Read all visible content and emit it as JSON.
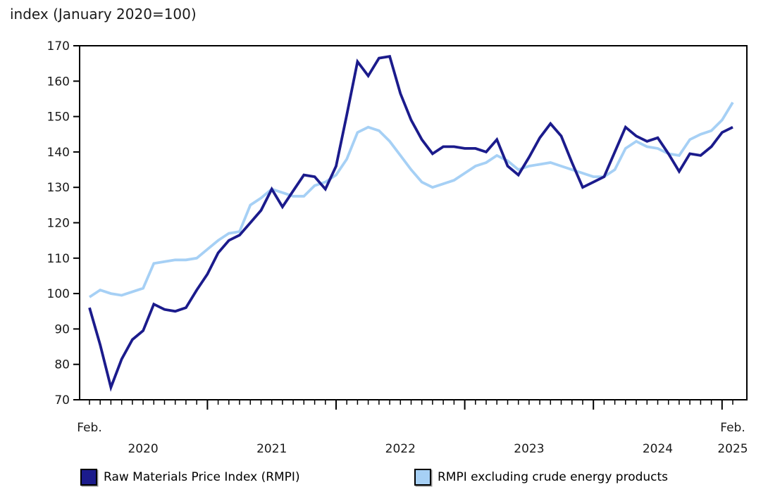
{
  "title": "index (January 2020=100)",
  "chart_data": {
    "type": "line",
    "title": "index (January 2020=100)",
    "ylim": [
      70,
      170
    ],
    "y_ticks": [
      70,
      80,
      90,
      100,
      110,
      120,
      130,
      140,
      150,
      160,
      170
    ],
    "grid": false,
    "legend_position": "bottom",
    "x": [
      "2020-02",
      "2020-03",
      "2020-04",
      "2020-05",
      "2020-06",
      "2020-07",
      "2020-08",
      "2020-09",
      "2020-10",
      "2020-11",
      "2020-12",
      "2021-01",
      "2021-02",
      "2021-03",
      "2021-04",
      "2021-05",
      "2021-06",
      "2021-07",
      "2021-08",
      "2021-09",
      "2021-10",
      "2021-11",
      "2021-12",
      "2022-01",
      "2022-02",
      "2022-03",
      "2022-04",
      "2022-05",
      "2022-06",
      "2022-07",
      "2022-08",
      "2022-09",
      "2022-10",
      "2022-11",
      "2022-12",
      "2023-01",
      "2023-02",
      "2023-03",
      "2023-04",
      "2023-05",
      "2023-06",
      "2023-07",
      "2023-08",
      "2023-09",
      "2023-10",
      "2023-11",
      "2023-12",
      "2024-01",
      "2024-02",
      "2024-03",
      "2024-04",
      "2024-05",
      "2024-06",
      "2024-07",
      "2024-08",
      "2024-09",
      "2024-10",
      "2024-11",
      "2024-12",
      "2025-01",
      "2025-02"
    ],
    "x_axis": {
      "start_label": {
        "text": "Feb.",
        "month_index": 0
      },
      "end_label": {
        "line1": "Feb.",
        "line2": "2025",
        "month_index": 60
      },
      "year_labels": [
        {
          "text": "2020",
          "month_index": 5
        },
        {
          "text": "2021",
          "month_index": 17
        },
        {
          "text": "2022",
          "month_index": 29
        },
        {
          "text": "2023",
          "month_index": 41
        },
        {
          "text": "2024",
          "month_index": 53
        }
      ]
    },
    "series": [
      {
        "name": "Raw Materials Price Index (RMPI)",
        "color": "#1b1b8c",
        "values": [
          96,
          85.5,
          73.5,
          81.5,
          87,
          89.5,
          97,
          95.5,
          95,
          96,
          101,
          105.5,
          111.5,
          115,
          116.5,
          120,
          123.5,
          129.5,
          124.5,
          129,
          133.5,
          133,
          129.5,
          136,
          150.5,
          165.5,
          161.5,
          166.5,
          167,
          156.5,
          149,
          143.5,
          139.5,
          141.5,
          141.5,
          141,
          141,
          140,
          143.5,
          136,
          133.5,
          138.5,
          144,
          148,
          144.5,
          137,
          130,
          131.5,
          133,
          140,
          147,
          144.5,
          143,
          144,
          139.5,
          134.5,
          139.5,
          139,
          141.5,
          145.5,
          147
        ]
      },
      {
        "name": "RMPI excluding crude energy products",
        "color": "#a6d0f5",
        "values": [
          99,
          101,
          100,
          99.5,
          100.5,
          101.5,
          108.5,
          109,
          109.5,
          109.5,
          110,
          112.5,
          115,
          117,
          117.5,
          125,
          127,
          129.5,
          128.5,
          127.5,
          127.5,
          130.5,
          131.5,
          133.5,
          138,
          145.5,
          147,
          146,
          143,
          139,
          135,
          131.5,
          130,
          131,
          132,
          134,
          136,
          137,
          139,
          137.5,
          135,
          136,
          136.5,
          137,
          136,
          135,
          134,
          133,
          133,
          135,
          141,
          143,
          141.5,
          141,
          139.5,
          139,
          143.5,
          145,
          146,
          149,
          154
        ]
      }
    ]
  },
  "legend": {
    "items": [
      {
        "label": "Raw Materials Price Index (RMPI)",
        "color": "#1b1b8c"
      },
      {
        "label": "RMPI excluding crude energy products",
        "color": "#a6d0f5"
      }
    ]
  },
  "colors": {
    "axis": "#000000",
    "text": "#1a1a1a",
    "background": "#ffffff"
  }
}
